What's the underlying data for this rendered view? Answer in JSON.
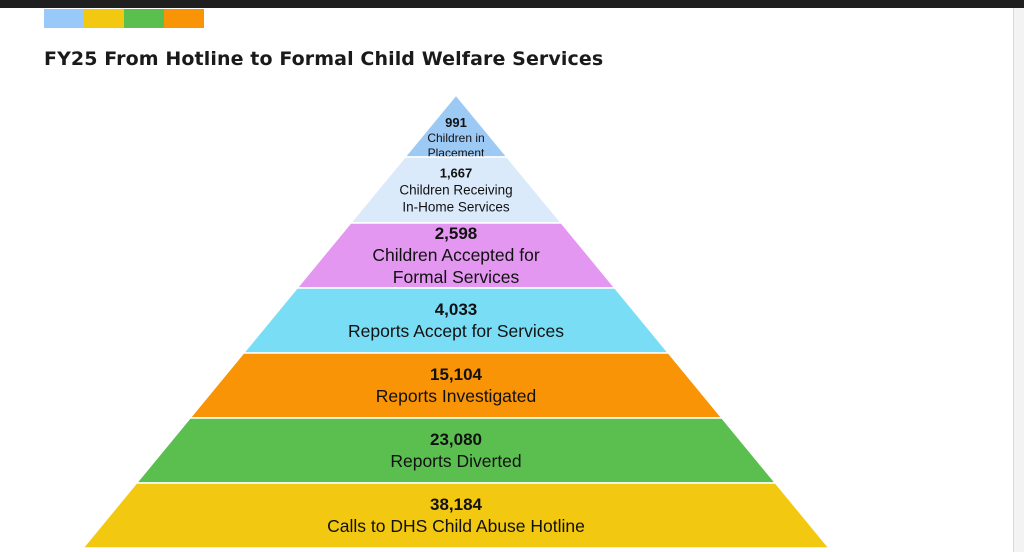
{
  "header": {
    "accent_colors": [
      "#99c9f9",
      "#f2c811",
      "#5bbf4f",
      "#f89406"
    ],
    "title": "FY25 From Hotline to Formal Child Welfare Services"
  },
  "pyramid": {
    "tiers": [
      {
        "value": "991",
        "label_lines": [
          "Children in",
          "Placement"
        ],
        "color": "#9dc9f5"
      },
      {
        "value": "1,667",
        "label_lines": [
          "Children Receiving",
          "In-Home Services"
        ],
        "color": "#dbeafa"
      },
      {
        "value": "2,598",
        "label_lines": [
          "Children Accepted for",
          "Formal Services"
        ],
        "color": "#e497f1"
      },
      {
        "value": "4,033",
        "label_lines": [
          "Reports Accept for Services"
        ],
        "color": "#79def5"
      },
      {
        "value": "15,104",
        "label_lines": [
          "Reports Investigated"
        ],
        "color": "#f89406"
      },
      {
        "value": "23,080",
        "label_lines": [
          "Reports Diverted"
        ],
        "color": "#5bbf4f"
      },
      {
        "value": "38,184",
        "label_lines": [
          "Calls to DHS Child Abuse Hotline"
        ],
        "color": "#f2c811"
      }
    ]
  }
}
